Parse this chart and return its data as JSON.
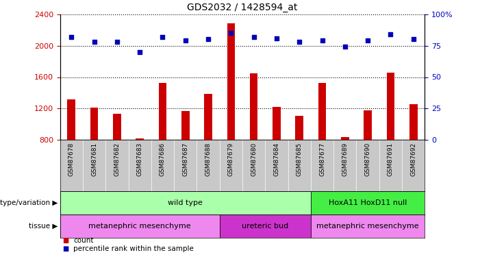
{
  "title": "GDS2032 / 1428594_at",
  "samples": [
    "GSM87678",
    "GSM87681",
    "GSM87682",
    "GSM87683",
    "GSM87686",
    "GSM87687",
    "GSM87688",
    "GSM87679",
    "GSM87680",
    "GSM87684",
    "GSM87685",
    "GSM87677",
    "GSM87689",
    "GSM87690",
    "GSM87691",
    "GSM87692"
  ],
  "counts": [
    1320,
    1210,
    1130,
    820,
    1530,
    1170,
    1390,
    2280,
    1650,
    1220,
    1110,
    1530,
    840,
    1180,
    1660,
    1260
  ],
  "percentiles": [
    82,
    78,
    78,
    70,
    82,
    79,
    80,
    85,
    82,
    81,
    78,
    79,
    74,
    79,
    84,
    80
  ],
  "ylim_left": [
    800,
    2400
  ],
  "ylim_right": [
    0,
    100
  ],
  "yticks_left": [
    800,
    1200,
    1600,
    2000,
    2400
  ],
  "yticks_right": [
    0,
    25,
    50,
    75,
    100
  ],
  "ytick_labels_right": [
    "0",
    "25",
    "50",
    "75",
    "100%"
  ],
  "bar_color": "#cc0000",
  "dot_color": "#0000bb",
  "genotype_groups": [
    {
      "label": "wild type",
      "start": 0,
      "end": 11,
      "color": "#aaffaa"
    },
    {
      "label": "HoxA11 HoxD11 null",
      "start": 11,
      "end": 16,
      "color": "#44ee44"
    }
  ],
  "tissue_groups": [
    {
      "label": "metanephric mesenchyme",
      "start": 0,
      "end": 7,
      "color": "#ee88ee"
    },
    {
      "label": "ureteric bud",
      "start": 7,
      "end": 11,
      "color": "#cc33cc"
    },
    {
      "label": "metanephric mesenchyme",
      "start": 11,
      "end": 16,
      "color": "#ee88ee"
    }
  ],
  "legend_count_label": "count",
  "legend_dot_label": "percentile rank within the sample",
  "genotype_label": "genotype/variation",
  "tissue_label": "tissue",
  "tick_bg_color": "#c8c8c8",
  "bar_width": 0.35
}
